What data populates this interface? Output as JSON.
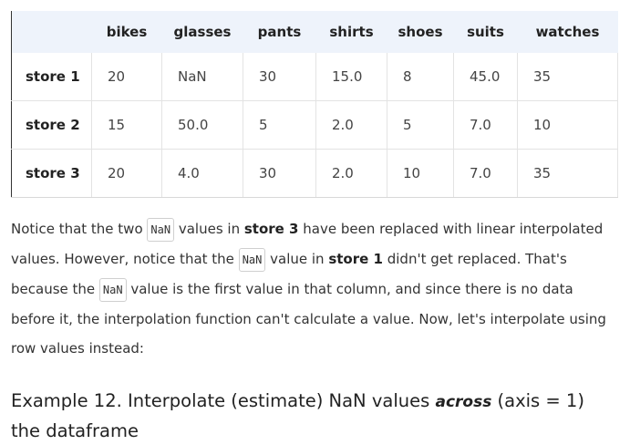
{
  "table": {
    "columns": [
      "bikes",
      "glasses",
      "pants",
      "shirts",
      "shoes",
      "suits",
      "watches"
    ],
    "rows": [
      {
        "label": "store 1",
        "cells": [
          "20",
          "NaN",
          "30",
          "15.0",
          "8",
          "45.0",
          "35"
        ]
      },
      {
        "label": "store 2",
        "cells": [
          "15",
          "50.0",
          "5",
          "2.0",
          "5",
          "7.0",
          "10"
        ]
      },
      {
        "label": "store 3",
        "cells": [
          "20",
          "4.0",
          "30",
          "2.0",
          "10",
          "7.0",
          "35"
        ]
      }
    ]
  },
  "paragraph": {
    "t1": "Notice that the two ",
    "code1": "NaN",
    "t2": " values in ",
    "b1": "store 3",
    "t3": " have been replaced with linear interpolated values. However, notice that the ",
    "code2": "NaN",
    "t4": " value in ",
    "b2": "store 1",
    "t5": " didn't get replaced. That's because the ",
    "code3": "NaN",
    "t6": " value is the first value in that column, and since there is no data before it, the interpolation function can't calculate a value. Now, let's interpolate using row values instead:"
  },
  "heading": {
    "pre": "Example 12. Interpolate (estimate) NaN values ",
    "em": "across",
    "post": " (axis = 1) the dataframe"
  }
}
